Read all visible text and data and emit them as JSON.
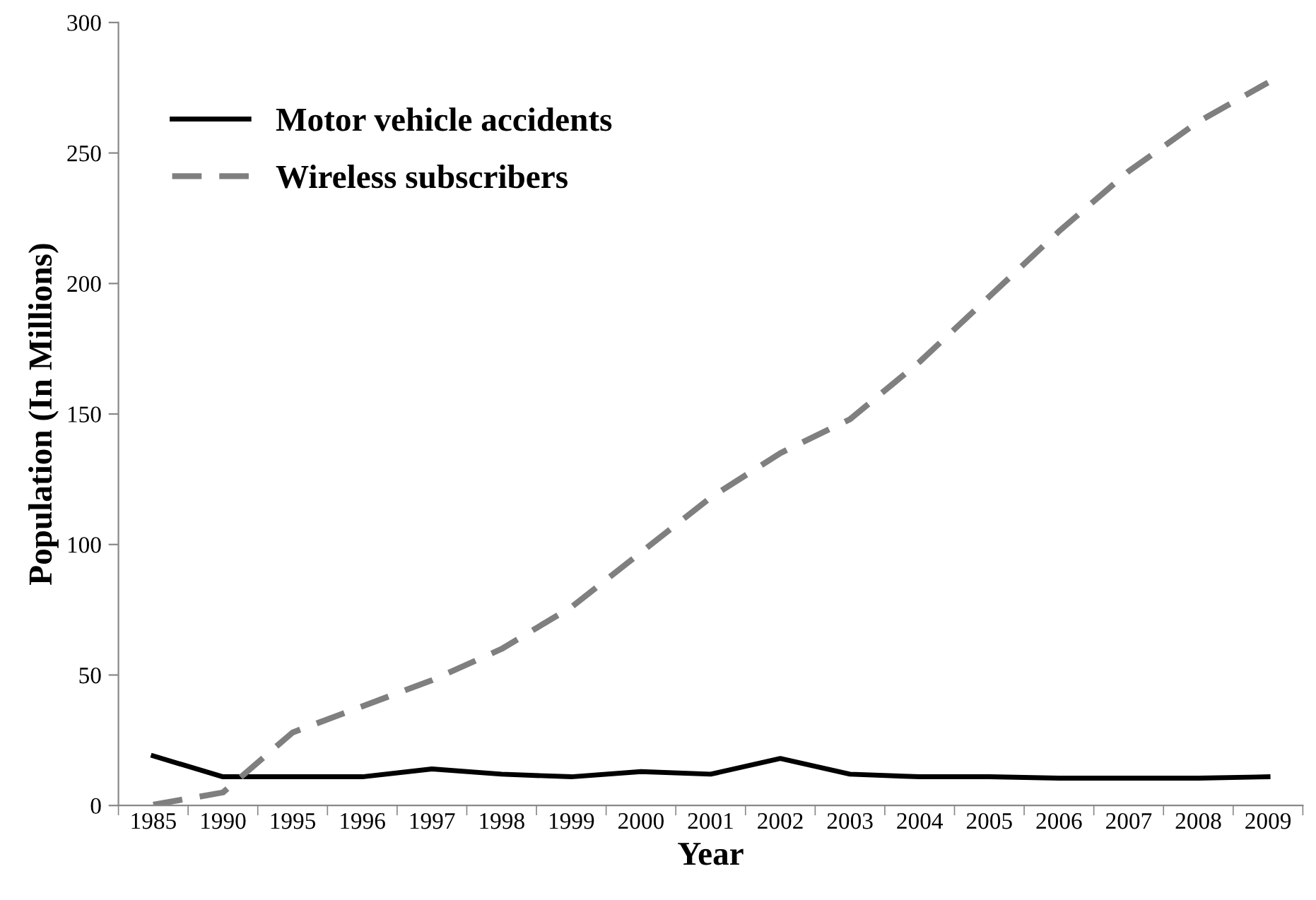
{
  "chart_data": {
    "type": "line",
    "xlabel": "Year",
    "ylabel": "Population (In Millions)",
    "categories": [
      "1985",
      "1990",
      "1995",
      "1996",
      "1997",
      "1998",
      "1999",
      "2000",
      "2001",
      "2002",
      "2003",
      "2004",
      "2005",
      "2006",
      "2007",
      "2008",
      "2009"
    ],
    "series": [
      {
        "name": "Motor vehicle accidents",
        "color": "#000000",
        "line_style": "solid",
        "values": [
          19,
          11,
          11,
          11,
          14,
          12,
          11,
          13,
          12,
          18,
          12,
          11,
          11,
          10.5,
          10.5,
          10.5,
          11
        ]
      },
      {
        "name": "Wireless subscribers",
        "color": "#7f7f7f",
        "line_style": "dashed",
        "values": [
          0.3,
          5,
          28,
          38,
          48,
          60,
          76,
          97,
          118,
          135,
          148,
          170,
          195,
          220,
          243,
          262,
          277
        ]
      }
    ],
    "ylim": [
      0,
      300
    ],
    "yticks": [
      0,
      50,
      100,
      150,
      200,
      250,
      300
    ],
    "grid": false,
    "legend": "top left",
    "marker": "none"
  }
}
